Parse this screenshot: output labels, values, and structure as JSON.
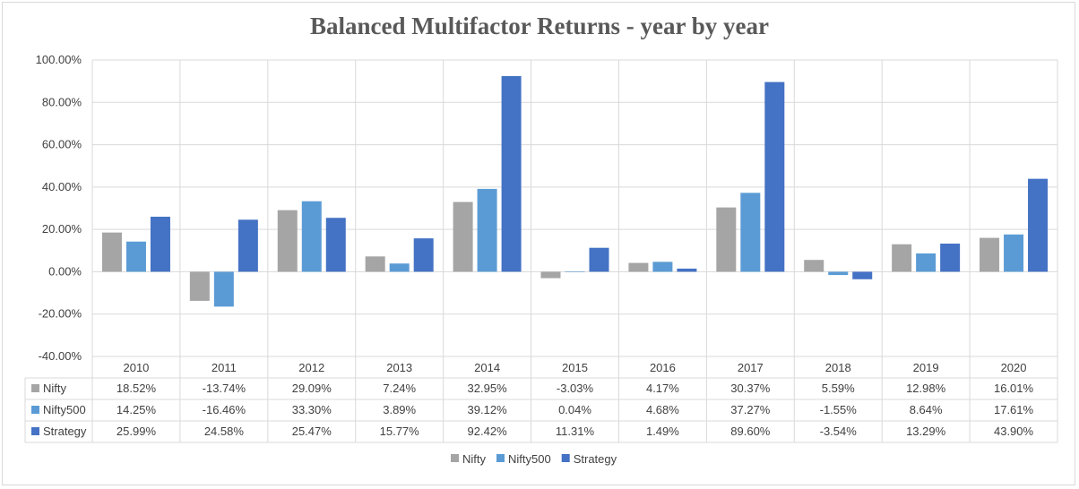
{
  "chart_data": {
    "type": "bar",
    "title": "Balanced Multifactor Returns - year by year",
    "categories": [
      "2010",
      "2011",
      "2012",
      "2013",
      "2014",
      "2015",
      "2016",
      "2017",
      "2018",
      "2019",
      "2020"
    ],
    "y_ticks": [
      "100.00%",
      "80.00%",
      "60.00%",
      "40.00%",
      "20.00%",
      "0.00%",
      "-20.00%",
      "-40.00%"
    ],
    "ylim": [
      -40,
      100
    ],
    "grid": true,
    "legend_position": "bottom",
    "series": [
      {
        "name": "Nifty",
        "color": "#a5a5a5",
        "values": [
          18.52,
          -13.74,
          29.09,
          7.24,
          32.95,
          -3.03,
          4.17,
          30.37,
          5.59,
          12.98,
          16.01
        ],
        "labels": [
          "18.52%",
          "-13.74%",
          "29.09%",
          "7.24%",
          "32.95%",
          "-3.03%",
          "4.17%",
          "30.37%",
          "5.59%",
          "12.98%",
          "16.01%"
        ]
      },
      {
        "name": "Nifty500",
        "color": "#5b9bd5",
        "values": [
          14.25,
          -16.46,
          33.3,
          3.89,
          39.12,
          0.04,
          4.68,
          37.27,
          -1.55,
          8.64,
          17.61
        ],
        "labels": [
          "14.25%",
          "-16.46%",
          "33.30%",
          "3.89%",
          "39.12%",
          "0.04%",
          "4.68%",
          "37.27%",
          "-1.55%",
          "8.64%",
          "17.61%"
        ]
      },
      {
        "name": "Strategy",
        "color": "#4472c4",
        "values": [
          25.99,
          24.58,
          25.47,
          15.77,
          92.42,
          11.31,
          1.49,
          89.6,
          -3.54,
          13.29,
          43.9
        ],
        "labels": [
          "25.99%",
          "24.58%",
          "25.47%",
          "15.77%",
          "92.42%",
          "11.31%",
          "1.49%",
          "89.60%",
          "-3.54%",
          "13.29%",
          "43.90%"
        ]
      }
    ]
  }
}
